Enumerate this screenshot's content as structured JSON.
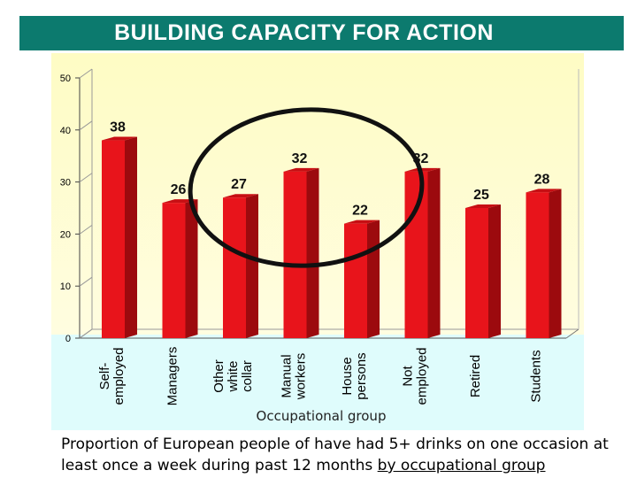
{
  "header": {
    "title": "BUILDING CAPACITY FOR ACTION"
  },
  "colors": {
    "banner": "#0c7a6e",
    "plot_bg_top": "#fefcc4",
    "plot_bg_bottom": "#fffde0",
    "lower_bg": "#dffcfc",
    "bar_front": "#e8141b",
    "bar_side": "#9c0a0e",
    "bar_top": "#c70f14",
    "highlight_ring": "#111111"
  },
  "chart_data": {
    "type": "bar",
    "categories": [
      [
        "Self-",
        "employed"
      ],
      [
        "Managers"
      ],
      [
        "Other",
        "white",
        "collar"
      ],
      [
        "Manual",
        "workers"
      ],
      [
        "House",
        "persons"
      ],
      [
        "Not",
        "employed"
      ],
      [
        "Retired"
      ],
      [
        "Students"
      ]
    ],
    "values": [
      38,
      26,
      27,
      32,
      22,
      32,
      25,
      28
    ],
    "data_labels": [
      "38",
      "26",
      "27",
      "32",
      "22",
      "32",
      "25",
      "28"
    ],
    "ylabel": "%",
    "xlabel": "Occupational group",
    "ylim": [
      0,
      50
    ],
    "yticks": [
      0,
      10,
      20,
      30,
      40,
      50
    ],
    "grid": false,
    "legend": "none",
    "annotation": "ellipse highlighting Managers, Other white collar, Manual workers"
  },
  "caption": {
    "line1": "Proportion of European people of have had 5+ drinks on one occasion at",
    "line2_prefix": "least once a week during past 12 months ",
    "line2_underlined": "by occupational group"
  }
}
